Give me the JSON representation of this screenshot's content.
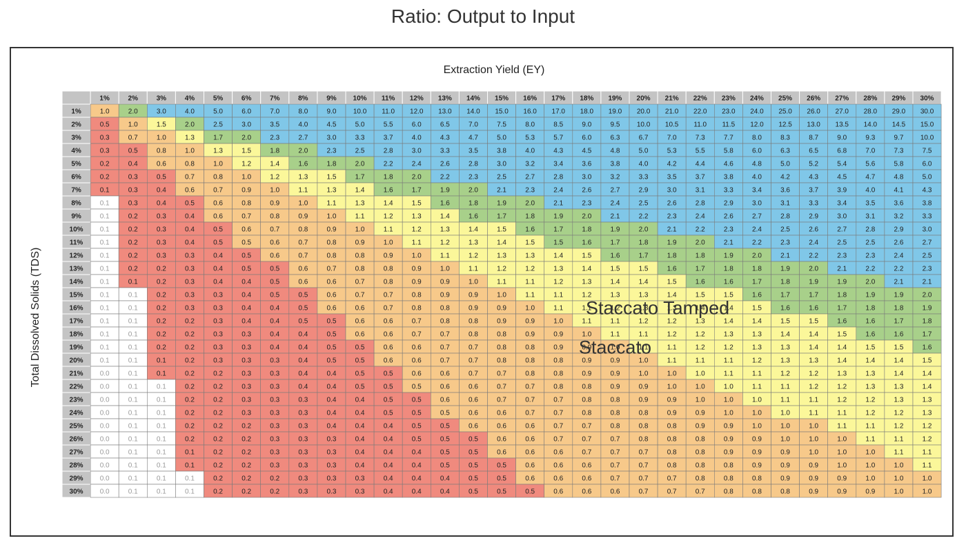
{
  "chart_data": {
    "type": "heatmap",
    "title": "Ratio: Output to Input",
    "xlabel": "Extraction Yield (EY)",
    "ylabel": "Total Dissolved Solids (TDS)",
    "x_ticks": [
      "1%",
      "2%",
      "3%",
      "4%",
      "5%",
      "6%",
      "7%",
      "8%",
      "9%",
      "10%",
      "11%",
      "12%",
      "13%",
      "14%",
      "15%",
      "16%",
      "17%",
      "18%",
      "19%",
      "20%",
      "21%",
      "22%",
      "23%",
      "24%",
      "25%",
      "26%",
      "27%",
      "28%",
      "29%",
      "30%"
    ],
    "y_ticks": [
      "1%",
      "2%",
      "3%",
      "4%",
      "5%",
      "6%",
      "7%",
      "8%",
      "9%",
      "10%",
      "11%",
      "12%",
      "13%",
      "14%",
      "15%",
      "16%",
      "17%",
      "18%",
      "19%",
      "20%",
      "21%",
      "22%",
      "23%",
      "24%",
      "25%",
      "26%",
      "27%",
      "28%",
      "29%",
      "30%"
    ],
    "x_values": [
      1,
      2,
      3,
      4,
      5,
      6,
      7,
      8,
      9,
      10,
      11,
      12,
      13,
      14,
      15,
      16,
      17,
      18,
      19,
      20,
      21,
      22,
      23,
      24,
      25,
      26,
      27,
      28,
      29,
      30
    ],
    "y_values": [
      1,
      2,
      3,
      4,
      5,
      6,
      7,
      8,
      9,
      10,
      11,
      12,
      13,
      14,
      15,
      16,
      17,
      18,
      19,
      20,
      21,
      22,
      23,
      24,
      25,
      26,
      27,
      28,
      29,
      30
    ],
    "cell_value": "EY / TDS",
    "decimals": 1,
    "color_bands": [
      {
        "max": 0.14,
        "color": "#ffffff",
        "text_color": "#9a9a9a"
      },
      {
        "max": 0.54,
        "color": "#f08a7e",
        "text_color": "#222222"
      },
      {
        "max": 1.04,
        "color": "#f7c98a",
        "text_color": "#222222"
      },
      {
        "max": 1.54,
        "color": "#fbf79a",
        "text_color": "#222222"
      },
      {
        "max": 2.04,
        "color": "#a8d08a",
        "text_color": "#222222"
      },
      {
        "max": 100,
        "color": "#80c7e8",
        "text_color": "#222222"
      }
    ],
    "header_color": "#c4c4c4",
    "grid": true,
    "annotations": [
      {
        "text": "Staccato Tamped",
        "x": 21,
        "y": 16
      },
      {
        "text": "Staccato",
        "x": 19.5,
        "y": 19
      }
    ]
  }
}
